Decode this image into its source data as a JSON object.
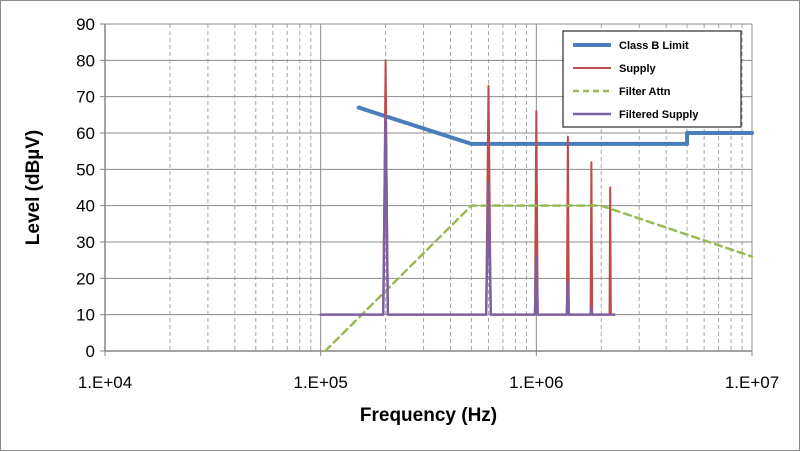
{
  "chart_data": {
    "type": "line",
    "title": "",
    "xlabel": "Frequency (Hz)",
    "ylabel": "Level (dBµV)",
    "x_scale": "log",
    "xlim": [
      10000,
      10000000
    ],
    "ylim": [
      0,
      90
    ],
    "x_ticks": [
      10000,
      100000,
      1000000,
      10000000
    ],
    "x_tick_labels": [
      "1.E+04",
      "1.E+05",
      "1.E+06",
      "1.E+07"
    ],
    "y_ticks": [
      0,
      10,
      20,
      30,
      40,
      50,
      60,
      70,
      80,
      90
    ],
    "y_tick_labels": [
      "0",
      "10",
      "20",
      "30",
      "40",
      "50",
      "60",
      "70",
      "80",
      "90"
    ],
    "grid": true,
    "legend_position": "top-right",
    "series": [
      {
        "name": "Class B Limit",
        "color": "#4a7ebb",
        "style": "solid",
        "points": [
          [
            150000,
            67
          ],
          [
            500000,
            57
          ],
          [
            5000000,
            57
          ],
          [
            5000000,
            60
          ],
          [
            10000000,
            60
          ]
        ]
      },
      {
        "name": "Supply",
        "color": "#be4b48",
        "style": "solid",
        "points": [
          [
            150000,
            10
          ],
          [
            195000,
            10
          ],
          [
            200000,
            80
          ],
          [
            205000,
            10
          ],
          [
            585000,
            10
          ],
          [
            600000,
            73
          ],
          [
            615000,
            10
          ],
          [
            985000,
            10
          ],
          [
            1000000,
            66
          ],
          [
            1015000,
            10
          ],
          [
            1385000,
            10
          ],
          [
            1400000,
            59
          ],
          [
            1415000,
            10
          ],
          [
            1785000,
            10
          ],
          [
            1800000,
            52
          ],
          [
            1815000,
            10
          ],
          [
            2185000,
            10
          ],
          [
            2200000,
            45
          ],
          [
            2215000,
            10
          ],
          [
            2300000,
            10
          ]
        ]
      },
      {
        "name": "Filter Attn",
        "color": "#98b954",
        "style": "dashed",
        "points": [
          [
            105000,
            0
          ],
          [
            500000,
            40
          ],
          [
            2000000,
            40
          ],
          [
            10000000,
            26
          ]
        ]
      },
      {
        "name": "Filtered Supply",
        "color": "#7d60a0",
        "style": "solid",
        "points": [
          [
            100000,
            10
          ],
          [
            195000,
            10
          ],
          [
            200000,
            65
          ],
          [
            205000,
            10
          ],
          [
            585000,
            10
          ],
          [
            600000,
            46
          ],
          [
            615000,
            10
          ],
          [
            985000,
            10
          ],
          [
            1000000,
            26
          ],
          [
            1015000,
            10
          ],
          [
            1385000,
            10
          ],
          [
            1400000,
            19
          ],
          [
            1415000,
            10
          ],
          [
            1785000,
            10
          ],
          [
            1800000,
            12
          ],
          [
            1815000,
            10
          ],
          [
            2300000,
            10
          ]
        ]
      }
    ]
  }
}
